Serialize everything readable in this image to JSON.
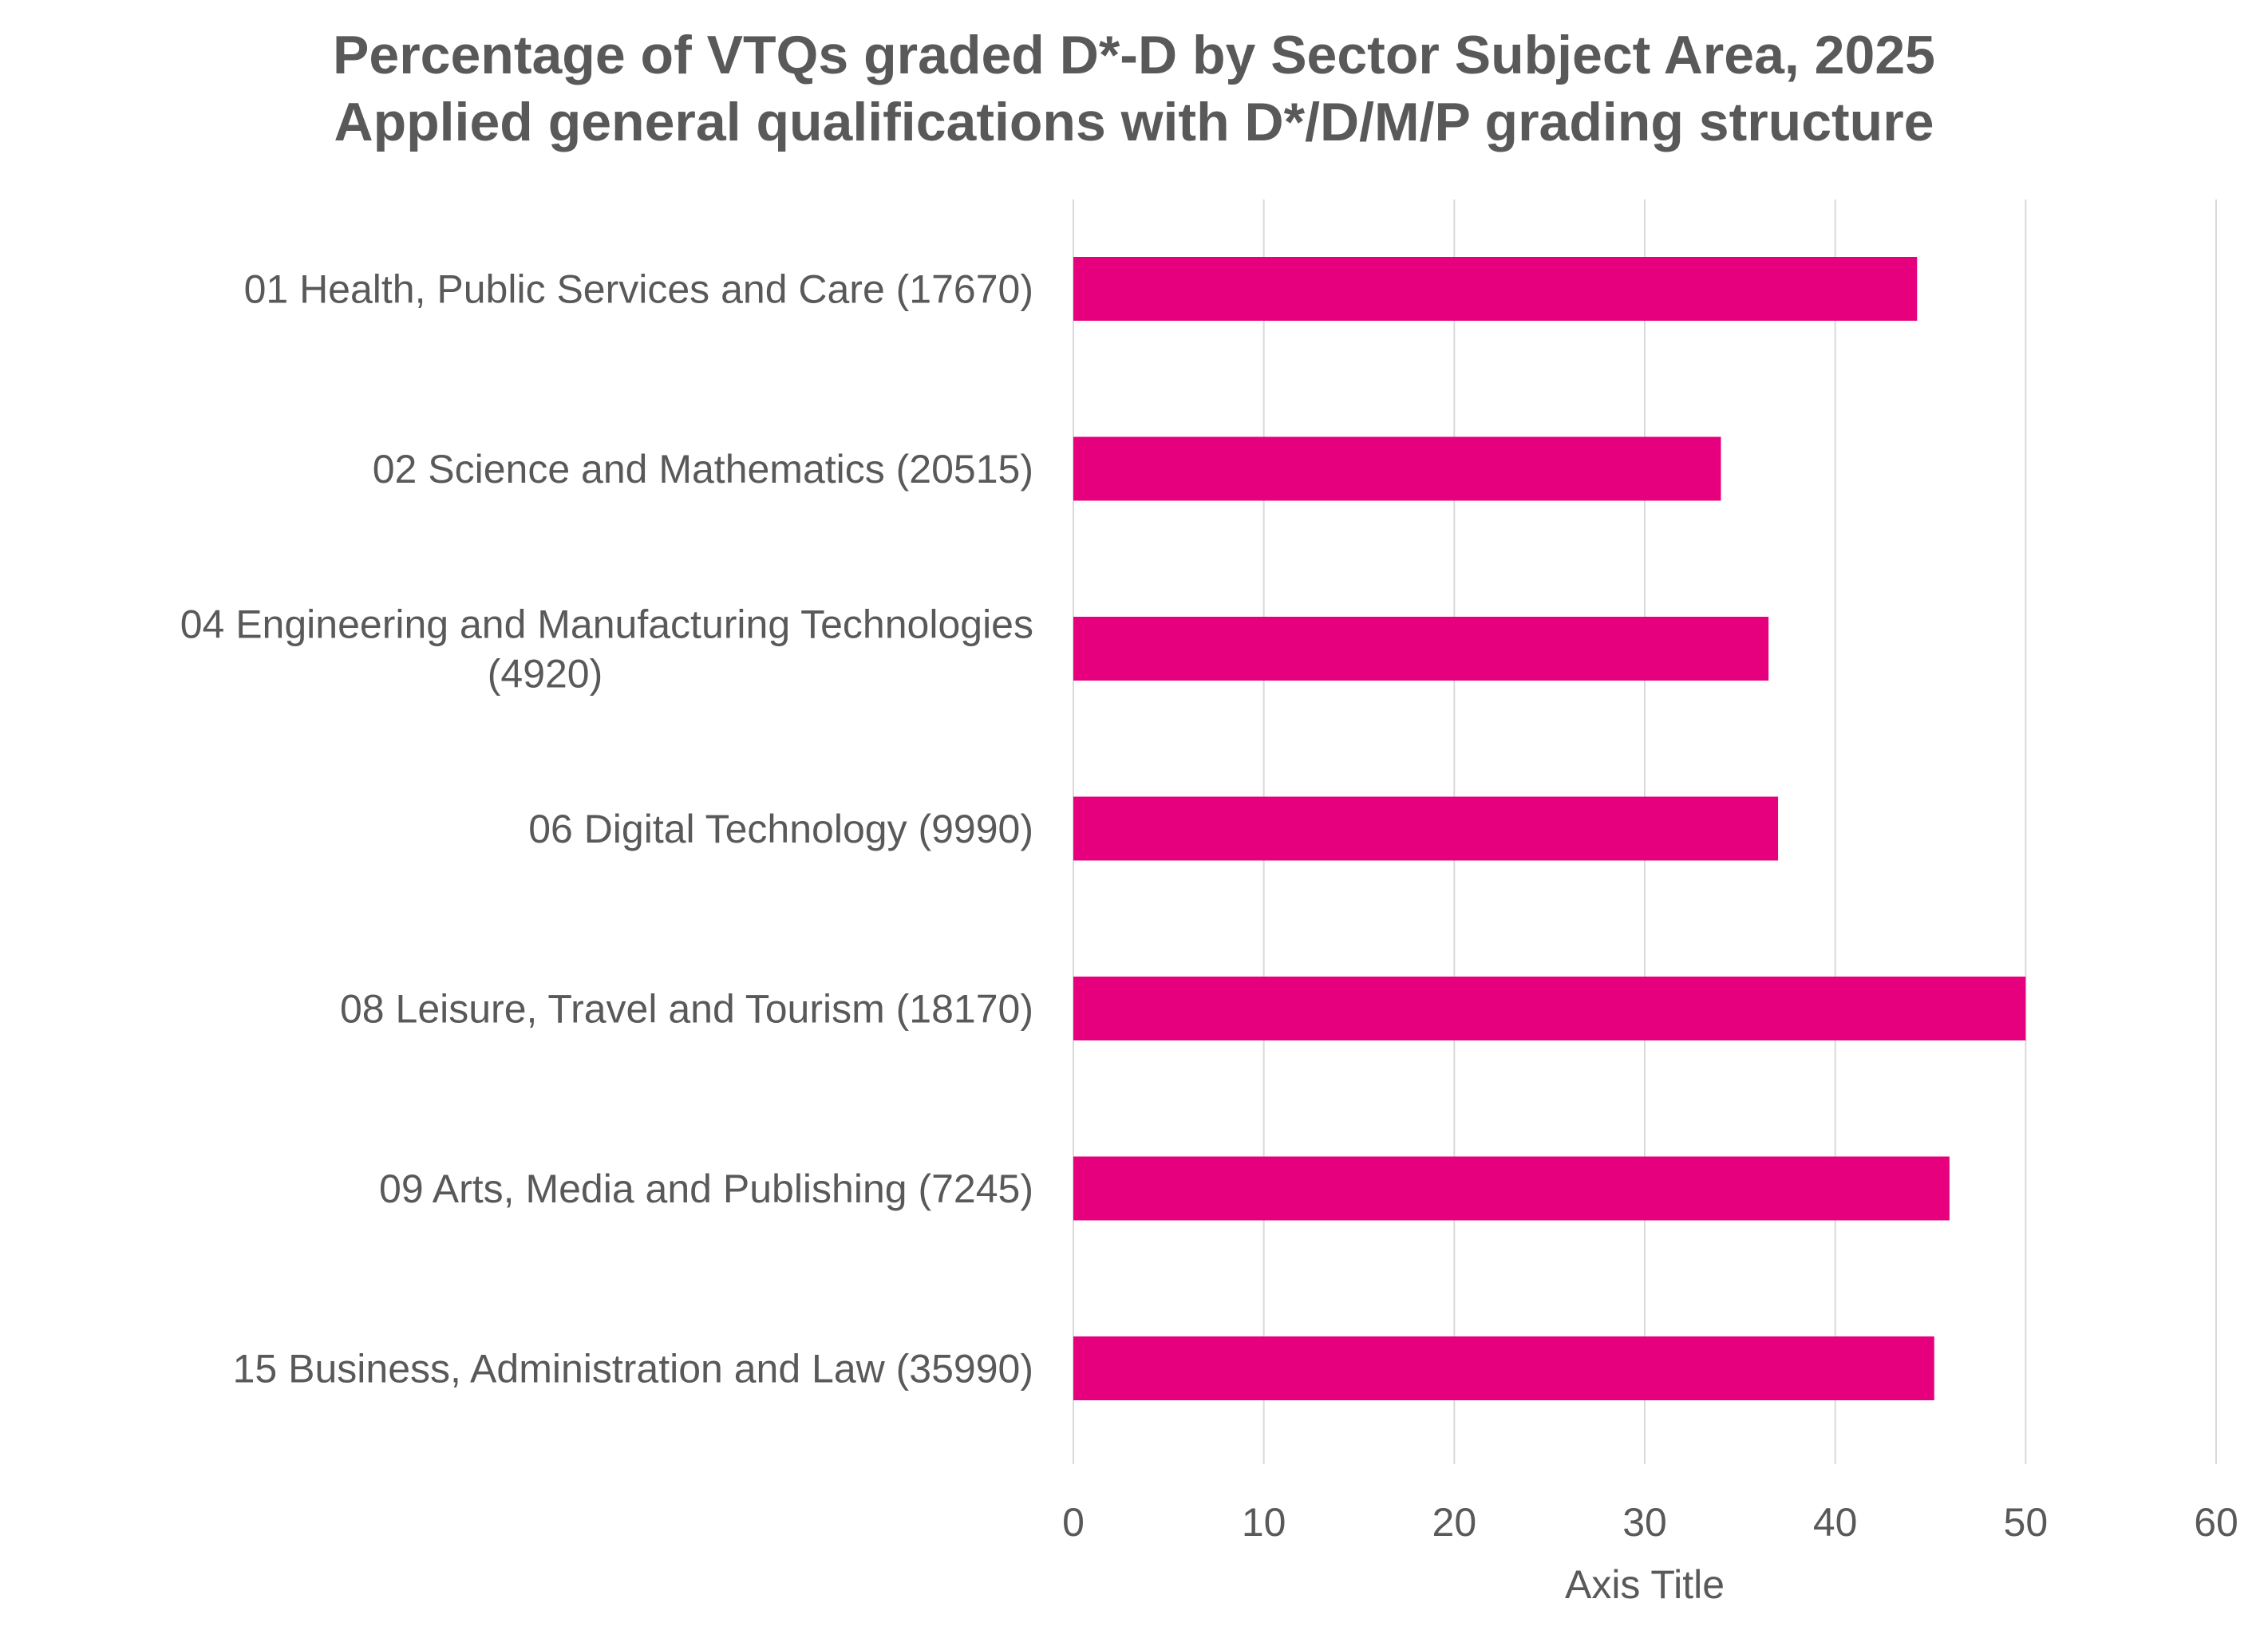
{
  "chart_data": {
    "type": "bar",
    "orientation": "horizontal",
    "title": "Percentage of VTQs graded D*-D by Sector Subject Area, 2025",
    "subtitle": "Applied general qualifications with D*/D/M/P grading structure",
    "xlabel": "Axis Title",
    "ylabel": "",
    "xlim": [
      0,
      60
    ],
    "x_ticks": [
      0,
      10,
      20,
      30,
      40,
      50,
      60
    ],
    "x_tick_labels": [
      "0",
      "10",
      "20",
      "30",
      "40",
      "50",
      "60"
    ],
    "grid": "vertical",
    "legend": "none",
    "categories": [
      [
        "01 Health, Public Services and Care (17670)"
      ],
      [
        "02 Science and Mathematics (20515)"
      ],
      [
        "04 Engineering and Manufacturing Technologies",
        "(4920)"
      ],
      [
        "06 Digital Technology (9990)"
      ],
      [
        "08 Leisure, Travel and Tourism (18170)"
      ],
      [
        "09 Arts, Media and Publishing (7245)"
      ],
      [
        "15 Business, Administration and Law (35990)"
      ]
    ],
    "values": [
      44.3,
      34.0,
      36.5,
      37.0,
      50.0,
      46.0,
      45.2
    ],
    "colors": {
      "bar": "#E6007E",
      "grid": "#D9D9D9",
      "text": "#595959"
    }
  }
}
